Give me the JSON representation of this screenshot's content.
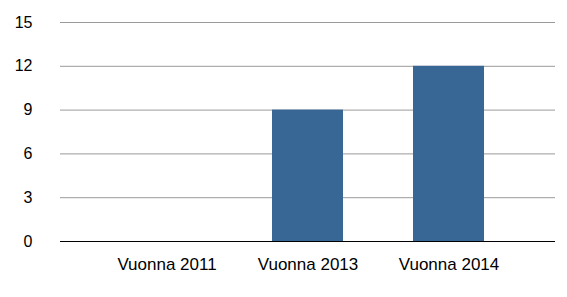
{
  "chart_data": {
    "type": "bar",
    "categories": [
      "Vuonna 2011",
      "Vuonna 2013",
      "Vuonna 2014"
    ],
    "values": [
      0,
      9,
      12
    ],
    "color": "#386795",
    "ylim": [
      0,
      15
    ],
    "yticks": [
      0,
      3,
      6,
      9,
      12,
      15
    ],
    "grid": true
  }
}
